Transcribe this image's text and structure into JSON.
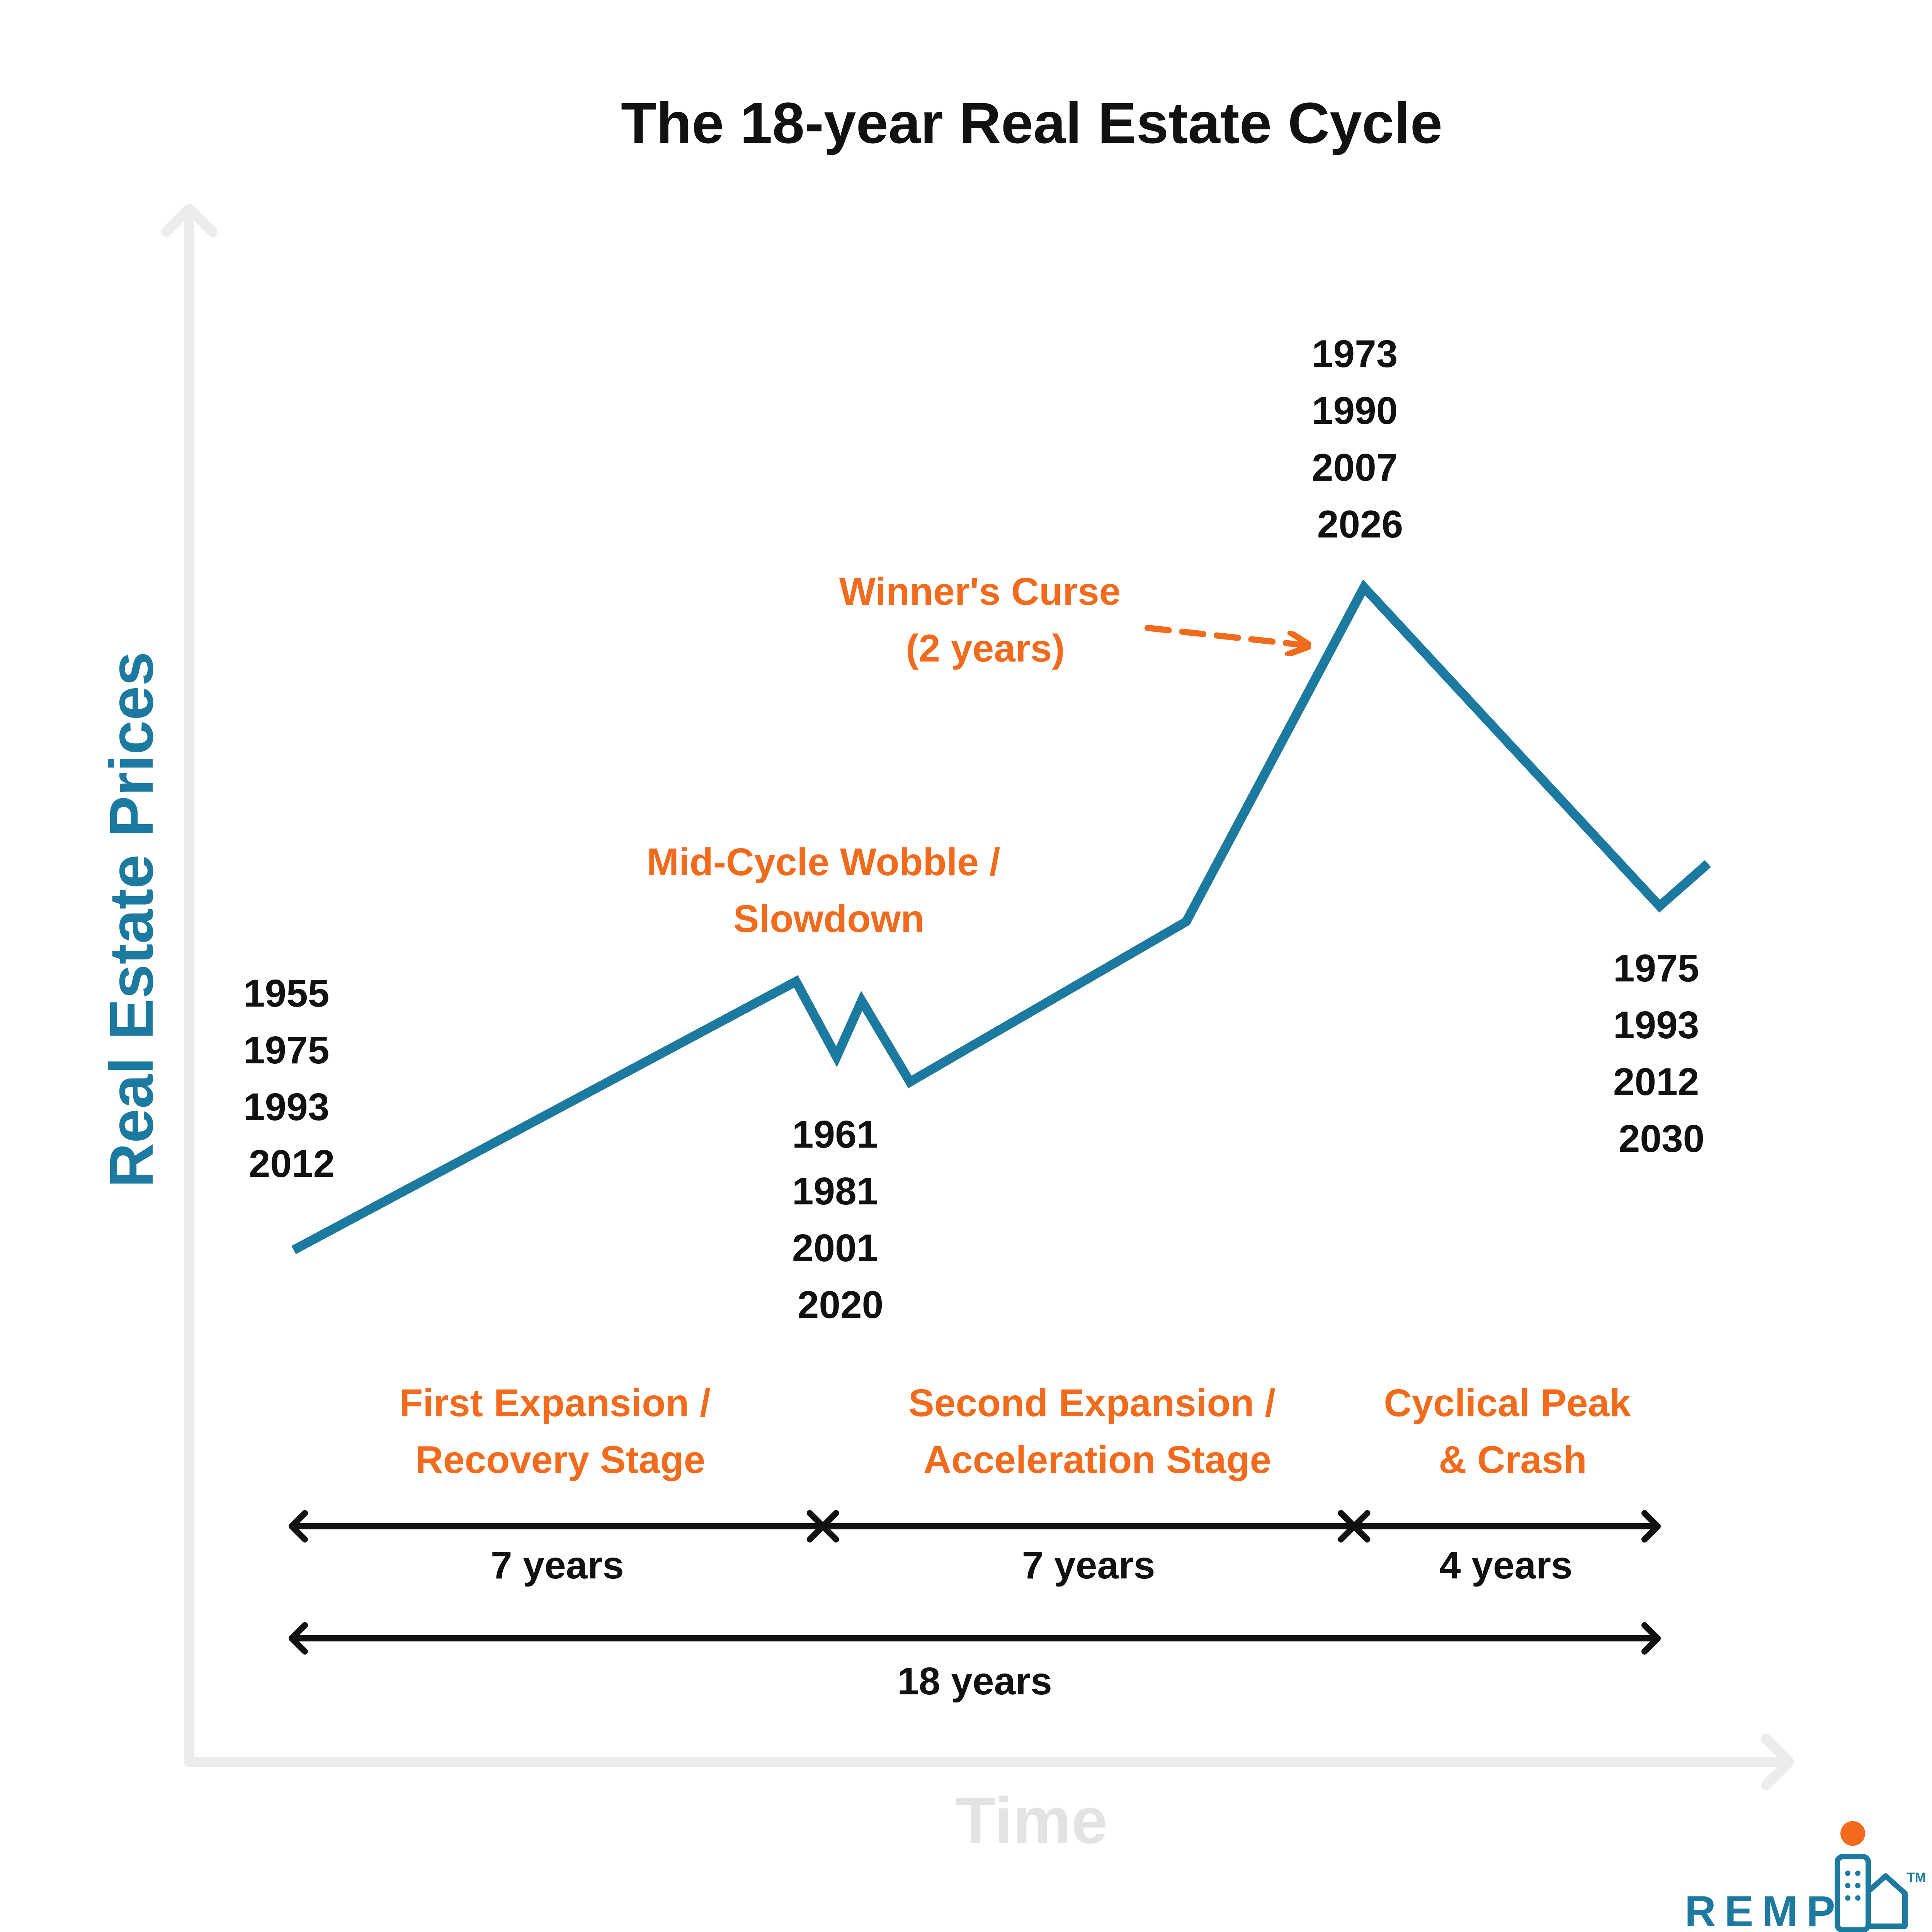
{
  "title": "The 18-year Real Estate Cycle",
  "axes": {
    "y_label": "Real Estate Prices",
    "x_label": "Time"
  },
  "year_groups": {
    "start": [
      "1955",
      "1975",
      "1993",
      "2012"
    ],
    "mid_cycle_low": [
      "1961",
      "1981",
      "2001",
      "2020"
    ],
    "peak": [
      "1973",
      "1990",
      "2007",
      "2026"
    ],
    "bottom": [
      "1975",
      "1993",
      "2012",
      "2030"
    ]
  },
  "annotations": {
    "mid_cycle": [
      "Mid-Cycle Wobble /",
      "Slowdown"
    ],
    "winners_curse": [
      "Winner's Curse",
      "(2 years)"
    ]
  },
  "stages": [
    {
      "lines": [
        "First Expansion /",
        "Recovery Stage"
      ],
      "duration": "7 years",
      "years": 7
    },
    {
      "lines": [
        "Second Expansion /",
        "Acceleration Stage"
      ],
      "duration": "7 years",
      "years": 7
    },
    {
      "lines": [
        "Cyclical Peak",
        "& Crash"
      ],
      "duration": "4 years",
      "years": 4
    }
  ],
  "total": {
    "label": "18 years",
    "years": 18
  },
  "logo": {
    "text": "REMP",
    "tm": "TM"
  },
  "colors": {
    "line": "#1c7aa0",
    "accent": "#f26b1d",
    "text": "#111111",
    "axis": "#ececec",
    "axis_label": "#e3e3e3"
  }
}
